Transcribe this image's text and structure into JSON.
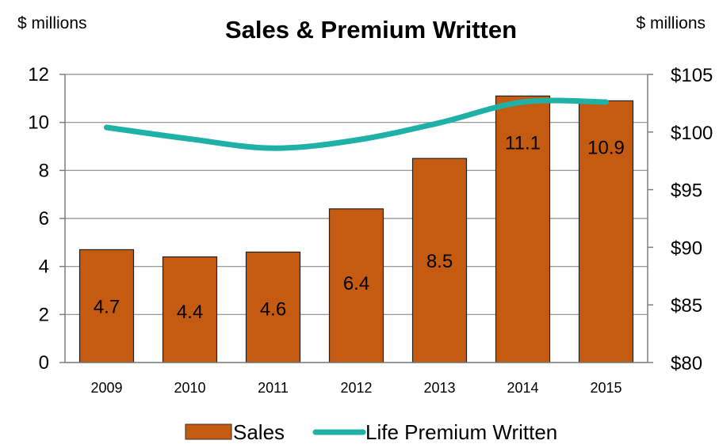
{
  "chart_data": {
    "type": "bar+line",
    "title": "Sales & Premium Written",
    "y_left_unit": "$ millions",
    "y_right_unit": "$ millions",
    "categories": [
      "2009",
      "2010",
      "2011",
      "2012",
      "2013",
      "2014",
      "2015"
    ],
    "y_left_range": [
      0,
      12
    ],
    "y_left_ticks": [
      "0",
      "2",
      "4",
      "6",
      "8",
      "10",
      "12"
    ],
    "y_right_range": [
      80,
      105
    ],
    "y_right_ticks": [
      "$80",
      "$85",
      "$90",
      "$95",
      "$100",
      "$105"
    ],
    "grid": true,
    "legend_position": "bottom",
    "series": [
      {
        "name": "Sales",
        "kind": "bar",
        "axis": "left",
        "color": "#C55A11",
        "values": [
          4.7,
          4.4,
          4.6,
          6.4,
          8.5,
          11.1,
          10.9
        ],
        "labels": [
          "4.7",
          "4.4",
          "4.6",
          "6.4",
          "8.5",
          "11.1",
          "10.9"
        ]
      },
      {
        "name": "Life Premium Written",
        "kind": "line",
        "axis": "right",
        "color": "#1FB0A6",
        "values": [
          100.4,
          99.4,
          98.6,
          99.3,
          100.8,
          102.6,
          102.6
        ]
      }
    ]
  }
}
